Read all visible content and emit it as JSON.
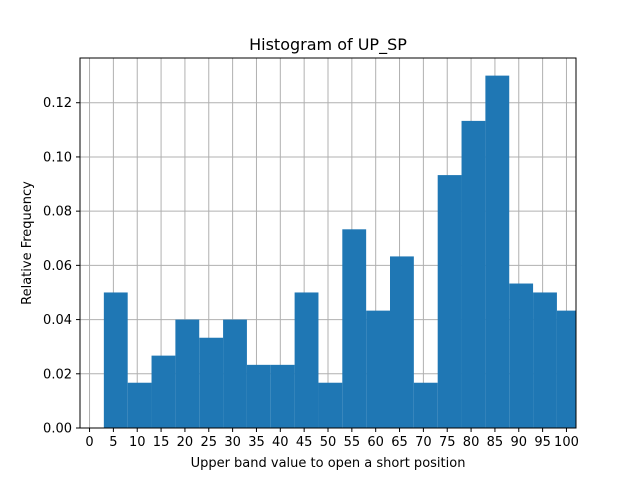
{
  "chart_data": {
    "type": "bar",
    "title": "Histogram of UP_SP",
    "xlabel": "Upper band value to open a short position",
    "ylabel": "Relative Frequency",
    "xlim": [
      -2,
      102
    ],
    "ylim": [
      0,
      0.1365
    ],
    "grid": true,
    "bar_color": "#1f77b4",
    "bin_width": 5,
    "bin_edges": [
      3,
      8,
      13,
      18,
      23,
      28,
      33,
      38,
      43,
      48,
      53,
      58,
      63,
      68,
      73,
      78,
      83,
      88,
      93,
      98,
      103
    ],
    "values": [
      0.05,
      0.0167,
      0.0267,
      0.04,
      0.0333,
      0.04,
      0.0233,
      0.0233,
      0.05,
      0.0167,
      0.0733,
      0.0433,
      0.0633,
      0.0167,
      0.0933,
      0.1133,
      0.13,
      0.0533,
      0.05,
      0.0433
    ],
    "x_ticks": [
      0,
      5,
      10,
      15,
      20,
      25,
      30,
      35,
      40,
      45,
      50,
      55,
      60,
      65,
      70,
      75,
      80,
      85,
      90,
      95,
      100
    ],
    "x_tick_labels": [
      "0",
      "5",
      "10",
      "15",
      "20",
      "25",
      "30",
      "35",
      "40",
      "45",
      "50",
      "55",
      "60",
      "65",
      "70",
      "75",
      "80",
      "85",
      "90",
      "95",
      "100"
    ],
    "y_ticks": [
      0.0,
      0.02,
      0.04,
      0.06,
      0.08,
      0.1,
      0.12
    ],
    "y_tick_labels": [
      "0.00",
      "0.02",
      "0.04",
      "0.06",
      "0.08",
      "0.10",
      "0.12"
    ]
  }
}
